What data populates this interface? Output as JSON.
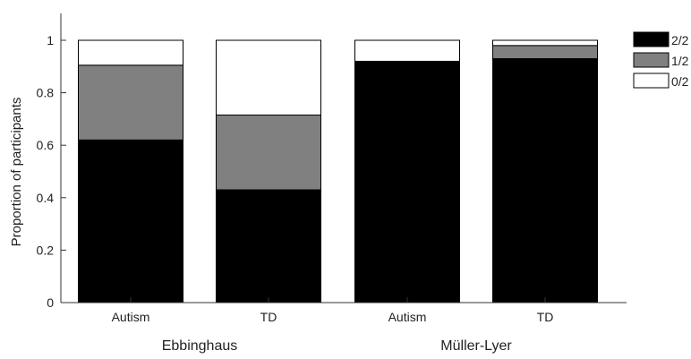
{
  "chart_data": {
    "type": "bar",
    "stacked": true,
    "categories": [
      "Autism",
      "TD",
      "Autism",
      "TD"
    ],
    "groups": [
      {
        "label": "Ebbinghaus",
        "categories": [
          0,
          1
        ]
      },
      {
        "label": "Müller-Lyer",
        "categories": [
          2,
          3
        ]
      }
    ],
    "series": [
      {
        "name": "2/2",
        "color": "#000000",
        "values": [
          0.62,
          0.43,
          0.92,
          0.93
        ]
      },
      {
        "name": "1/2",
        "color": "#808080",
        "values": [
          0.285,
          0.285,
          0.0,
          0.05
        ]
      },
      {
        "name": "0/2",
        "color": "#ffffff",
        "values": [
          0.095,
          0.285,
          0.08,
          0.02
        ]
      }
    ],
    "ylabel": "Proportion of participants",
    "xlabel": "",
    "ylim": [
      0,
      1
    ],
    "yticks": [
      0,
      0.2,
      0.4,
      0.6,
      0.8,
      1
    ],
    "ytick_labels": [
      "0",
      "0.2",
      "0.4",
      "0.6",
      "0.8",
      "1"
    ],
    "grid": false,
    "legend_position": "right"
  }
}
